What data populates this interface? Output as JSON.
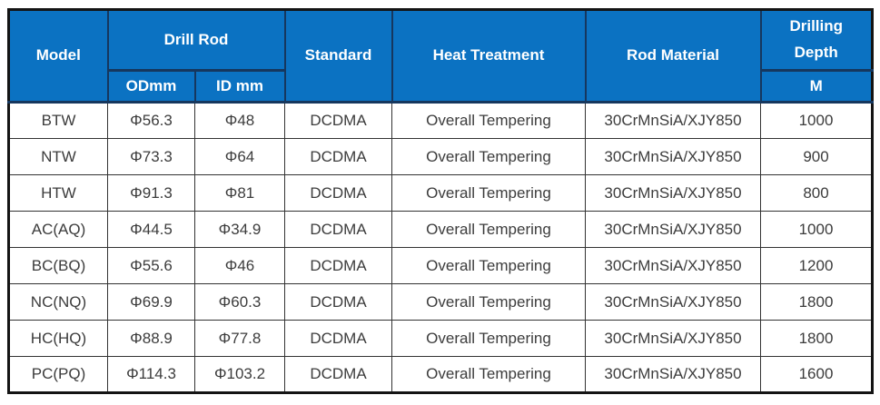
{
  "header": {
    "model": "Model",
    "drill_rod": "Drill Rod",
    "od": "ODmm",
    "id": "ID mm",
    "standard": "Standard",
    "heat_treatment": "Heat Treatment",
    "rod_material": "Rod Material",
    "drilling_depth": "Drilling Depth",
    "depth_unit": "M"
  },
  "rows": [
    {
      "model": "BTW",
      "od": "Φ56.3",
      "id": "Φ48",
      "standard": "DCDMA",
      "heat": "Overall Tempering",
      "material": "30CrMnSiA/XJY850",
      "depth": "1000"
    },
    {
      "model": "NTW",
      "od": "Φ73.3",
      "id": "Φ64",
      "standard": "DCDMA",
      "heat": "Overall Tempering",
      "material": "30CrMnSiA/XJY850",
      "depth": "900"
    },
    {
      "model": "HTW",
      "od": "Φ91.3",
      "id": "Φ81",
      "standard": "DCDMA",
      "heat": "Overall Tempering",
      "material": "30CrMnSiA/XJY850",
      "depth": "800"
    },
    {
      "model": "AC(AQ)",
      "od": "Φ44.5",
      "id": "Φ34.9",
      "standard": "DCDMA",
      "heat": "Overall Tempering",
      "material": "30CrMnSiA/XJY850",
      "depth": "1000"
    },
    {
      "model": "BC(BQ)",
      "od": "Φ55.6",
      "id": "Φ46",
      "standard": "DCDMA",
      "heat": "Overall Tempering",
      "material": "30CrMnSiA/XJY850",
      "depth": "1200"
    },
    {
      "model": "NC(NQ)",
      "od": "Φ69.9",
      "id": "Φ60.3",
      "standard": "DCDMA",
      "heat": "Overall Tempering",
      "material": "30CrMnSiA/XJY850",
      "depth": "1800"
    },
    {
      "model": "HC(HQ)",
      "od": "Φ88.9",
      "id": "Φ77.8",
      "standard": "DCDMA",
      "heat": "Overall Tempering",
      "material": "30CrMnSiA/XJY850",
      "depth": "1800"
    },
    {
      "model": "PC(PQ)",
      "od": "Φ114.3",
      "id": "Φ103.2",
      "standard": "DCDMA",
      "heat": "Overall Tempering",
      "material": "30CrMnSiA/XJY850",
      "depth": "1600"
    }
  ],
  "chart_data": {
    "type": "table",
    "columns": [
      "Model",
      "Drill Rod ODmm",
      "Drill Rod ID mm",
      "Standard",
      "Heat Treatment",
      "Rod Material",
      "Drilling Depth M"
    ],
    "rows": [
      [
        "BTW",
        "Φ56.3",
        "Φ48",
        "DCDMA",
        "Overall Tempering",
        "30CrMnSiA/XJY850",
        "1000"
      ],
      [
        "NTW",
        "Φ73.3",
        "Φ64",
        "DCDMA",
        "Overall Tempering",
        "30CrMnSiA/XJY850",
        "900"
      ],
      [
        "HTW",
        "Φ91.3",
        "Φ81",
        "DCDMA",
        "Overall Tempering",
        "30CrMnSiA/XJY850",
        "800"
      ],
      [
        "AC(AQ)",
        "Φ44.5",
        "Φ34.9",
        "DCDMA",
        "Overall Tempering",
        "30CrMnSiA/XJY850",
        "1000"
      ],
      [
        "BC(BQ)",
        "Φ55.6",
        "Φ46",
        "DCDMA",
        "Overall Tempering",
        "30CrMnSiA/XJY850",
        "1200"
      ],
      [
        "NC(NQ)",
        "Φ69.9",
        "Φ60.3",
        "DCDMA",
        "Overall Tempering",
        "30CrMnSiA/XJY850",
        "1800"
      ],
      [
        "HC(HQ)",
        "Φ88.9",
        "Φ77.8",
        "DCDMA",
        "Overall Tempering",
        "30CrMnSiA/XJY850",
        "1800"
      ],
      [
        "PC(PQ)",
        "Φ114.3",
        "Φ103.2",
        "DCDMA",
        "Overall Tempering",
        "30CrMnSiA/XJY850",
        "1600"
      ]
    ]
  },
  "colors": {
    "header_bg": "#0b72c2",
    "header_text": "#ffffff",
    "header_divider": "#16375e",
    "body_grid": "#333333",
    "body_text": "#3c3c3c",
    "outer_border": "#141414"
  }
}
